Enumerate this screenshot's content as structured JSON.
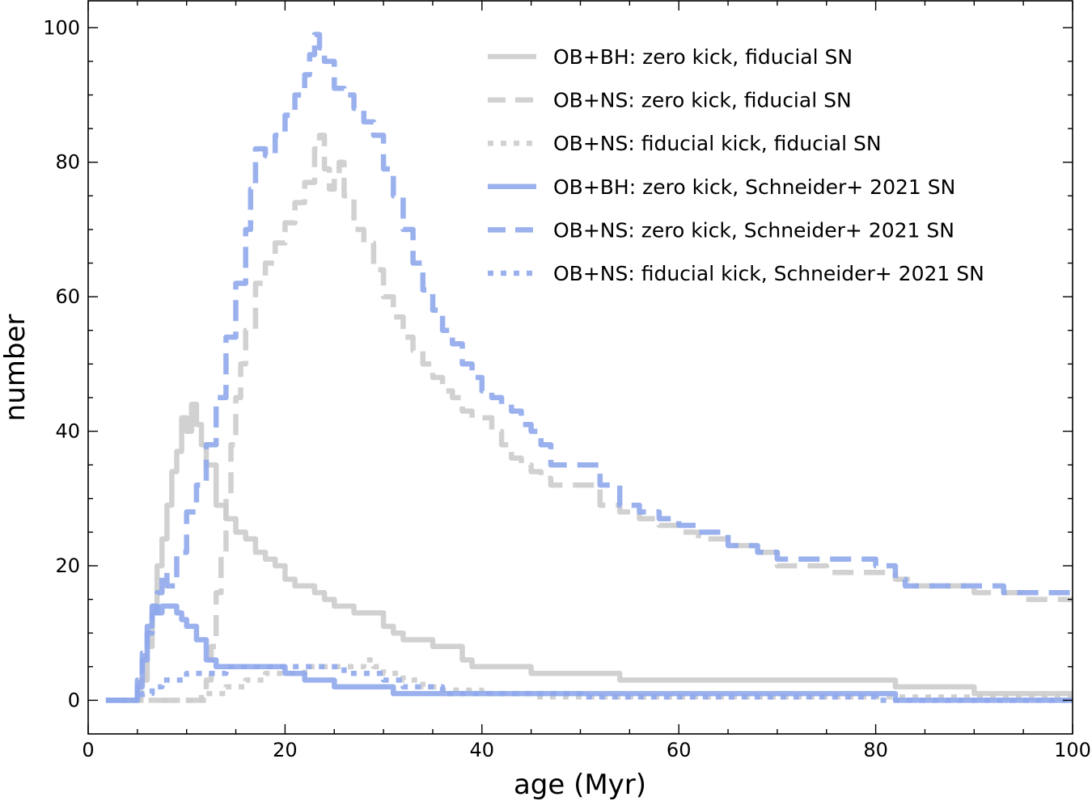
{
  "chart_data": {
    "type": "line",
    "title": "",
    "xlabel": "age (Myr)",
    "ylabel": "number",
    "xlim": [
      0,
      100
    ],
    "ylim": [
      -5,
      104
    ],
    "xticks": [
      0,
      20,
      40,
      60,
      80,
      100
    ],
    "yticks": [
      0,
      20,
      40,
      60,
      80,
      100
    ],
    "grid": false,
    "legend_position": "top-right",
    "colors": {
      "gray": "#cccccc",
      "blue": "#8fa8ec",
      "blue_dark": "#6a85e3",
      "axis": "#000000"
    },
    "series": [
      {
        "name": "OB+BH: zero kick, fiducial SN",
        "color": "#cccccc",
        "style": "solid",
        "x": [
          1.8,
          4.5,
          5.3,
          6.0,
          6.5,
          7.0,
          7.5,
          8.0,
          8.5,
          9.0,
          9.5,
          10.0,
          10.5,
          11.0,
          11.5,
          12.0,
          13.0,
          14.0,
          15.0,
          16.0,
          17.0,
          18.0,
          19.0,
          20.0,
          21.0,
          22.0,
          23.0,
          24.0,
          25.0,
          26.0,
          27.0,
          28.0,
          29.0,
          30.0,
          31.0,
          32.0,
          33.0,
          34.0,
          35.0,
          36.0,
          37.0,
          38.0,
          39.0,
          40.0,
          41.0,
          42.0,
          43.0,
          44.0,
          45.0,
          46.0,
          47.0,
          50.0,
          52.0,
          53.0,
          54.0,
          56.0,
          60.0,
          70.0,
          80.0,
          81.0,
          82.0,
          85.0,
          89.0,
          90.0,
          95.0,
          100.0
        ],
        "y": [
          0,
          0,
          3,
          8,
          14,
          20,
          24,
          29,
          34,
          37,
          42,
          40,
          44,
          41,
          38,
          35,
          29,
          27,
          25,
          24,
          22,
          21,
          20,
          18,
          17,
          17,
          16,
          15,
          14,
          14,
          13,
          13,
          13,
          11,
          10,
          9,
          9,
          9,
          8,
          8,
          8,
          6,
          5,
          5,
          5,
          5,
          5,
          5,
          4,
          4,
          4,
          4,
          4,
          4,
          3,
          3,
          3,
          3,
          3,
          3,
          2,
          2,
          2,
          1,
          1,
          1
        ]
      },
      {
        "name": "OB+NS: zero kick, fiducial SN",
        "color": "#cccccc",
        "style": "dashed",
        "x": [
          3.5,
          11.0,
          11.5,
          12.0,
          12.5,
          13.0,
          13.5,
          14.0,
          14.5,
          15.0,
          15.5,
          16.0,
          17.0,
          18.0,
          19.0,
          20.0,
          21.0,
          22.0,
          23.0,
          23.5,
          24.0,
          24.5,
          25.0,
          25.5,
          26.0,
          27.0,
          28.0,
          29.0,
          30.0,
          31.0,
          32.0,
          33.0,
          34.0,
          35.0,
          36.0,
          37.0,
          38.0,
          39.0,
          40.0,
          41.0,
          42.0,
          43.0,
          44.0,
          45.0,
          46.0,
          47.0,
          50.0,
          52.0,
          54.0,
          56.0,
          58.0,
          60.0,
          62.0,
          65.0,
          68.0,
          70.0,
          75.0,
          80.0,
          82.0,
          84.0,
          90.0,
          92.0,
          95.0,
          100.0
        ],
        "y": [
          0,
          0,
          1,
          3,
          8,
          16,
          22,
          30,
          38,
          45,
          50,
          55,
          62,
          65,
          68,
          71,
          74,
          77,
          82,
          84,
          79,
          76,
          78,
          80,
          75,
          70,
          68,
          64,
          60,
          57,
          54,
          52,
          50,
          48,
          46,
          45,
          43,
          42,
          42,
          40,
          38,
          36,
          35,
          34,
          33,
          32,
          32,
          29,
          28,
          27,
          26,
          25,
          24,
          23,
          22,
          20,
          19,
          19,
          18,
          17,
          16,
          16,
          15,
          15
        ]
      },
      {
        "name": "OB+NS: fiducial kick, fiducial SN",
        "color": "#cccccc",
        "style": "dotted",
        "x": [
          3.5,
          11.0,
          12.0,
          14.0,
          16.0,
          18.0,
          20.0,
          22.0,
          24.0,
          26.0,
          28.0,
          29.0,
          30.0,
          32.0,
          34.0,
          36.0,
          40.0,
          45.0,
          50.0,
          60.0,
          70.0,
          80.0,
          90.0,
          100.0
        ],
        "y": [
          0,
          0,
          1,
          2,
          3,
          4,
          4,
          5,
          5,
          5,
          6,
          5,
          4,
          3,
          2,
          1.5,
          1,
          0.5,
          0.5,
          0.5,
          0.5,
          0.5,
          0.5,
          0.5
        ]
      },
      {
        "name": "OB+BH: zero kick, Schneider+ 2021 SN",
        "color": "#8fa8ec",
        "style": "solid",
        "x": [
          1.8,
          4.5,
          5.0,
          5.5,
          6.0,
          6.5,
          7.0,
          7.5,
          8.0,
          8.5,
          9.0,
          9.5,
          10.0,
          11.0,
          12.0,
          13.0,
          14.0,
          17.0,
          20.0,
          22.0,
          25.0,
          31.0,
          38.0,
          50.0,
          60.0,
          70.0,
          81.0,
          82.0,
          90.0,
          100.0
        ],
        "y": [
          0,
          0,
          2,
          6,
          11,
          14,
          13,
          14,
          14,
          14,
          13,
          12,
          11,
          9,
          6,
          5,
          5,
          5,
          4,
          3,
          2,
          1,
          1,
          1,
          1,
          1,
          1,
          0,
          0,
          0
        ]
      },
      {
        "name": "OB+NS: zero kick, Schneider+ 2021 SN",
        "color": "#8fa8ec",
        "style": "dashed",
        "x": [
          1.8,
          4.5,
          5.0,
          5.5,
          6.0,
          6.5,
          7.0,
          7.5,
          8.0,
          9.0,
          10.0,
          11.0,
          12.0,
          13.0,
          14.0,
          15.0,
          16.0,
          16.5,
          17.0,
          18.0,
          19.0,
          20.0,
          21.0,
          22.0,
          22.5,
          23.0,
          23.5,
          24.0,
          25.0,
          26.0,
          27.0,
          28.0,
          29.0,
          30.0,
          31.0,
          32.0,
          33.0,
          34.0,
          35.0,
          36.0,
          37.0,
          38.0,
          39.0,
          40.0,
          41.0,
          42.0,
          43.0,
          44.0,
          45.0,
          46.0,
          47.0,
          50.0,
          52.0,
          54.0,
          56.0,
          58.0,
          60.0,
          62.0,
          65.0,
          68.0,
          70.0,
          75.0,
          80.0,
          82.0,
          83.0,
          86.0,
          90.0,
          93.0,
          95.0,
          100.0
        ],
        "y": [
          0,
          0,
          3,
          7,
          10,
          13,
          16,
          19,
          17,
          22,
          28,
          32,
          38,
          45,
          54,
          62,
          70,
          76,
          82,
          81,
          84,
          87,
          90,
          93,
          96,
          99,
          97,
          95,
          91,
          90,
          88,
          86,
          84,
          79,
          75,
          70,
          65,
          61,
          58,
          55,
          53,
          50,
          48,
          46,
          45,
          44,
          43,
          41,
          40,
          38,
          35,
          35,
          32,
          29,
          28,
          27,
          26,
          25,
          23,
          22,
          21,
          21,
          20,
          18,
          17,
          17,
          17,
          16,
          16,
          16
        ]
      },
      {
        "name": "OB+NS: fiducial kick, Schneider+ 2021 SN",
        "color": "#8fa8ec",
        "style": "dotted",
        "x": [
          4.5,
          5.5,
          6.5,
          7.5,
          8.5,
          10.0,
          11.0,
          12.0,
          14.0,
          16.0,
          18.0,
          20.0,
          22.0,
          24.0,
          26.0,
          28.0,
          30.0,
          32.0,
          34.0,
          36.0,
          40.0,
          50.0,
          60.0,
          70.0,
          80.0,
          90.0,
          100.0
        ],
        "y": [
          0,
          1,
          2,
          3,
          3,
          4,
          4,
          4,
          5,
          5,
          5,
          5,
          5,
          5,
          4,
          4,
          3,
          2,
          2,
          1,
          1,
          0.5,
          0.5,
          0.5,
          0,
          0,
          0
        ]
      }
    ]
  }
}
